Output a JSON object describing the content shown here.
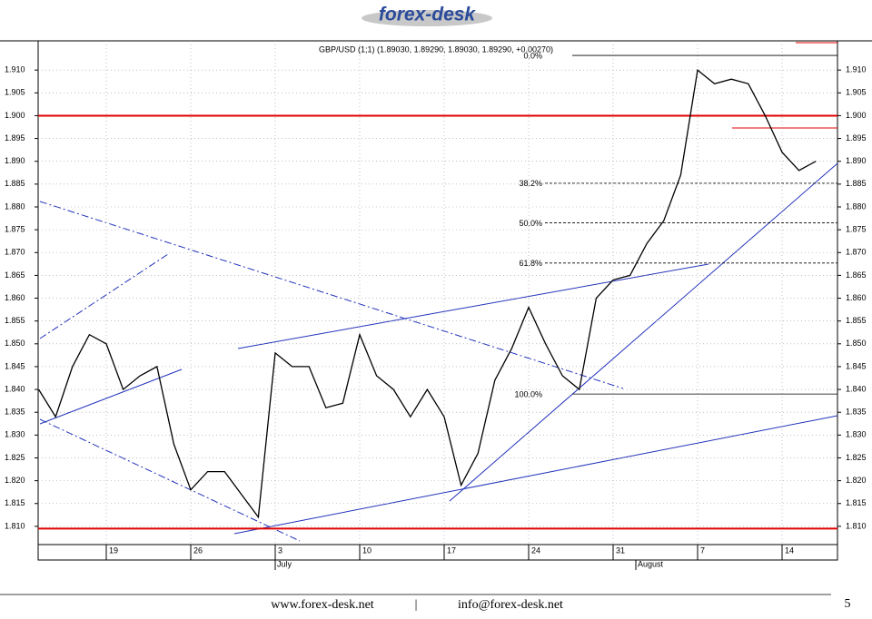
{
  "header": {
    "logo": "forex-desk"
  },
  "chart_data": {
    "type": "line",
    "title": "GBP/USD (1;1) (1.89030, 1.89290, 1.89030, 1.89290, +0.00270)",
    "categories": [
      null,
      null,
      null,
      null,
      "19",
      null,
      null,
      null,
      null,
      "26",
      null,
      null,
      null,
      null,
      "3",
      null,
      null,
      null,
      null,
      "10",
      null,
      null,
      null,
      null,
      "17",
      null,
      null,
      null,
      null,
      "24",
      null,
      null,
      null,
      null,
      "31",
      null,
      null,
      null,
      null,
      "7",
      null,
      null,
      null,
      null,
      "14",
      null,
      null
    ],
    "values": [
      1.84,
      1.834,
      1.845,
      1.852,
      1.85,
      1.84,
      1.843,
      1.845,
      1.828,
      1.818,
      1.822,
      1.822,
      1.817,
      1.812,
      1.848,
      1.845,
      1.845,
      1.836,
      1.837,
      1.852,
      1.843,
      1.84,
      1.834,
      1.84,
      1.834,
      1.819,
      1.826,
      1.842,
      1.849,
      1.858,
      1.85,
      1.843,
      1.84,
      1.86,
      1.864,
      1.865,
      1.872,
      1.877,
      1.887,
      1.91,
      1.907,
      1.908,
      1.907,
      1.9,
      1.892,
      1.888,
      1.89
    ],
    "color": "#000000",
    "x_month_labels": [
      "July",
      "August"
    ],
    "ylim": [
      1.806,
      1.9164
    ],
    "yticks": [
      {
        "value": 1.81,
        "label": "1.810"
      },
      1.815,
      {
        "value": 1.82,
        "label": "1.820"
      },
      1.825,
      {
        "value": 1.83,
        "label": "1.830"
      },
      1.835,
      {
        "value": 1.84,
        "label": "1.840"
      },
      1.845,
      {
        "value": 1.85,
        "label": "1.850"
      },
      1.855,
      {
        "value": 1.86,
        "label": "1.860"
      },
      1.865,
      {
        "value": 1.87,
        "label": "1.870"
      },
      1.875,
      {
        "value": 1.88,
        "label": "1.880"
      },
      1.885,
      {
        "value": 1.89,
        "label": "1.890"
      },
      1.895,
      {
        "value": 1.9,
        "label": "1.900"
      },
      1.905,
      {
        "value": 1.91,
        "label": "1.910"
      }
    ],
    "grid": true,
    "hlines": [
      1.9,
      1.8095
    ],
    "hline_color": "#e00000",
    "fib_levels": [
      {
        "level": "0.0%",
        "price": 1.9132
      },
      {
        "level": "38.2%",
        "price": 1.8852
      },
      {
        "level": "50.0%",
        "price": 1.8765
      },
      {
        "level": "61.8%",
        "price": 1.8677
      },
      {
        "level": "100.0%",
        "price": 1.839
      }
    ]
  },
  "footer": {
    "website": "www.forex-desk.net",
    "separator": "|",
    "email": "info@forex-desk.net",
    "page": "5"
  }
}
